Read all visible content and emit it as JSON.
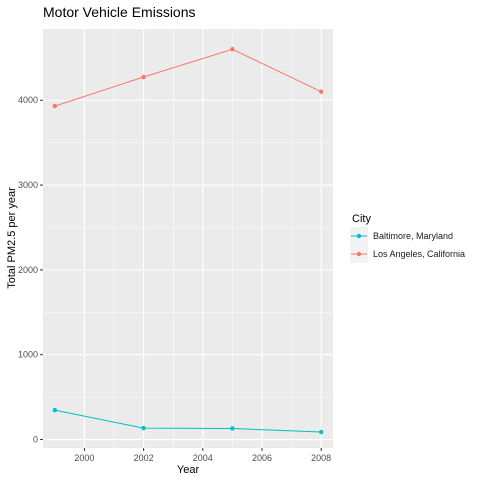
{
  "chart_data": {
    "type": "line",
    "title": "Motor Vehicle Emissions",
    "xlabel": "Year",
    "ylabel": "Total PM2.5 per year",
    "x": [
      1999,
      2002,
      2005,
      2008
    ],
    "xlim": [
      1998.6,
      2008.4
    ],
    "ylim": [
      -100,
      4840
    ],
    "xticks": [
      2000,
      2002,
      2004,
      2006,
      2008
    ],
    "yticks": [
      0,
      1000,
      2000,
      3000,
      4000
    ],
    "grid": true,
    "legend_title": "City",
    "legend_position": "right",
    "series": [
      {
        "name": "Baltimore, Maryland",
        "color": "#00BFC4",
        "values": [
          346.8,
          134.3,
          130.4,
          88.3
        ]
      },
      {
        "name": "Los Angeles, California",
        "color": "#F8766D",
        "values": [
          3931.1,
          4274.0,
          4601.4,
          4101.3
        ]
      }
    ]
  }
}
